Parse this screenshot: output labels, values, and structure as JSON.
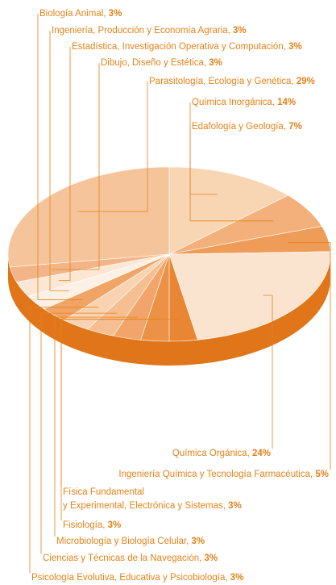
{
  "chart_data": {
    "type": "pie",
    "categories": [
      "Química Inorgánica",
      "Edafología y Geología",
      "Ingeniería Química y Tecnología Farmacéutica",
      "Química Orgánica",
      "Física Fundamental\ny Experimental, Electrónica y Sistemas",
      "Fisiología",
      "Microbiología y Biología Celular",
      "Ciencias y Técnicas de la Navegación",
      "Psicología Evolutiva, Educativa y Psicobiología",
      "Biología Animal",
      "Ingeniería, Producción y Economía Agraria",
      "Estadística, Investigación Operativa y Computación",
      "Dibujo, Diseño y Estética",
      "Parasitología, Ecología y Genética"
    ],
    "values": [
      14,
      7,
      5,
      24,
      3,
      3,
      3,
      3,
      3,
      3,
      3,
      3,
      3,
      29
    ],
    "value_labels": [
      "14%",
      "7%",
      "5%",
      "24%",
      "3%",
      "3%",
      "3%",
      "3%",
      "3%",
      "3%",
      "3%",
      "3%",
      "3%",
      "29%"
    ],
    "colors": [
      "#f8d6b4",
      "#f3b07a",
      "#ee9c58",
      "#fbe4cf",
      "#e98634",
      "#ec9247",
      "#f1a56a",
      "#f5bf91",
      "#f8d2b1",
      "#f0a466",
      "#fdf1e6",
      "#fbe7d4",
      "#f3b587",
      "#f6c49b"
    ]
  }
}
